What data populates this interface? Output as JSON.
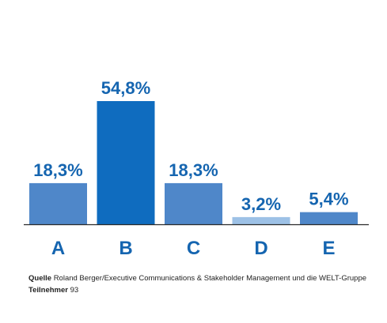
{
  "chart_data": {
    "type": "bar",
    "categories": [
      "A",
      "B",
      "C",
      "D",
      "E"
    ],
    "values": [
      18.3,
      54.8,
      18.3,
      3.2,
      5.4
    ],
    "value_labels": [
      "18,3%",
      "54,8%",
      "18,3%",
      "3,2%",
      "5,4%"
    ],
    "unit": "%",
    "ylim": [
      0,
      60
    ],
    "grid": false,
    "legend": "none",
    "colors": {
      "A": "#4f87c9",
      "B": "#0f6cbf",
      "C": "#4f87c9",
      "D": "#9dc1e6",
      "E": "#4f87c9",
      "text": "#1565b0",
      "axis": "#2a2a2a"
    }
  },
  "footer": {
    "source_label": "Quelle",
    "source_text": "Roland Berger/Executive Communications & Stakeholder Management und die WELT-Gruppe",
    "participants_label": "Teilnehmer",
    "participants_value": "93"
  }
}
